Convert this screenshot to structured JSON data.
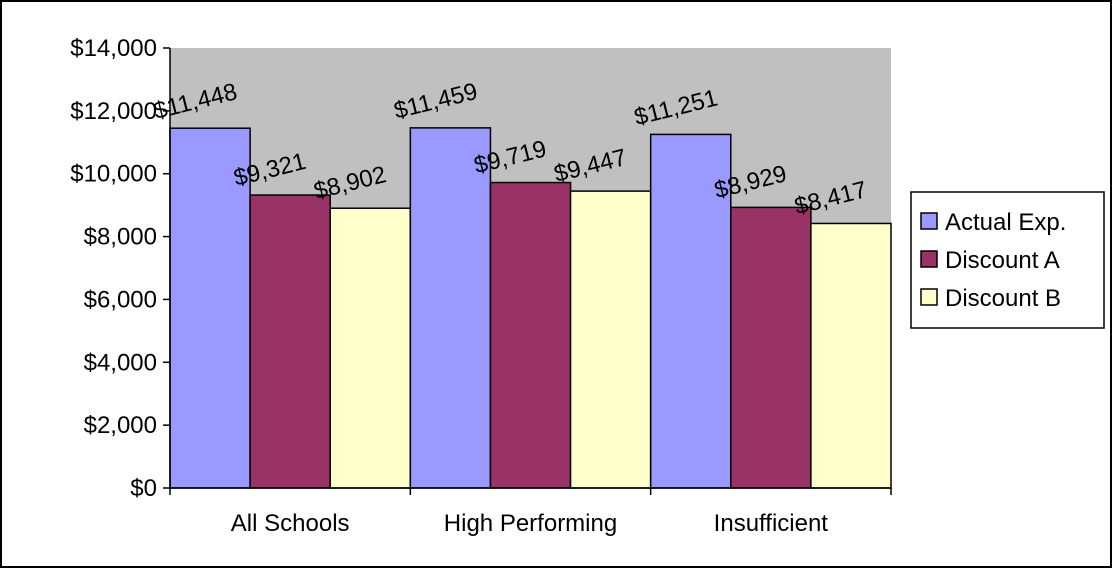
{
  "chart_data": {
    "type": "bar",
    "categories": [
      "All Schools",
      "High Performing",
      "Insufficient"
    ],
    "series": [
      {
        "name": "Actual Exp.",
        "color": "#9999ff",
        "values": [
          11448,
          11459,
          11251
        ],
        "labels": [
          "$11,448",
          "$11,459",
          "$11,251"
        ]
      },
      {
        "name": "Discount A",
        "color": "#993366",
        "values": [
          9321,
          9719,
          8929
        ],
        "labels": [
          "$9,321",
          "$9,719",
          "$8,929"
        ]
      },
      {
        "name": "Discount B",
        "color": "#ffffcc",
        "values": [
          8902,
          9447,
          8417
        ],
        "labels": [
          "$8,902",
          "$9,447",
          "$8,417"
        ]
      }
    ],
    "y_ticks": [
      0,
      2000,
      4000,
      6000,
      8000,
      10000,
      12000,
      14000
    ],
    "y_tick_labels": [
      "$0",
      "$2,000",
      "$4,000",
      "$6,000",
      "$8,000",
      "$10,000",
      "$12,000",
      "$14,000"
    ],
    "ylim": [
      0,
      14000
    ],
    "plot_background": "#c0c0c0",
    "title": "",
    "xlabel": "",
    "ylabel": "",
    "legend_position": "right",
    "grid": false
  }
}
